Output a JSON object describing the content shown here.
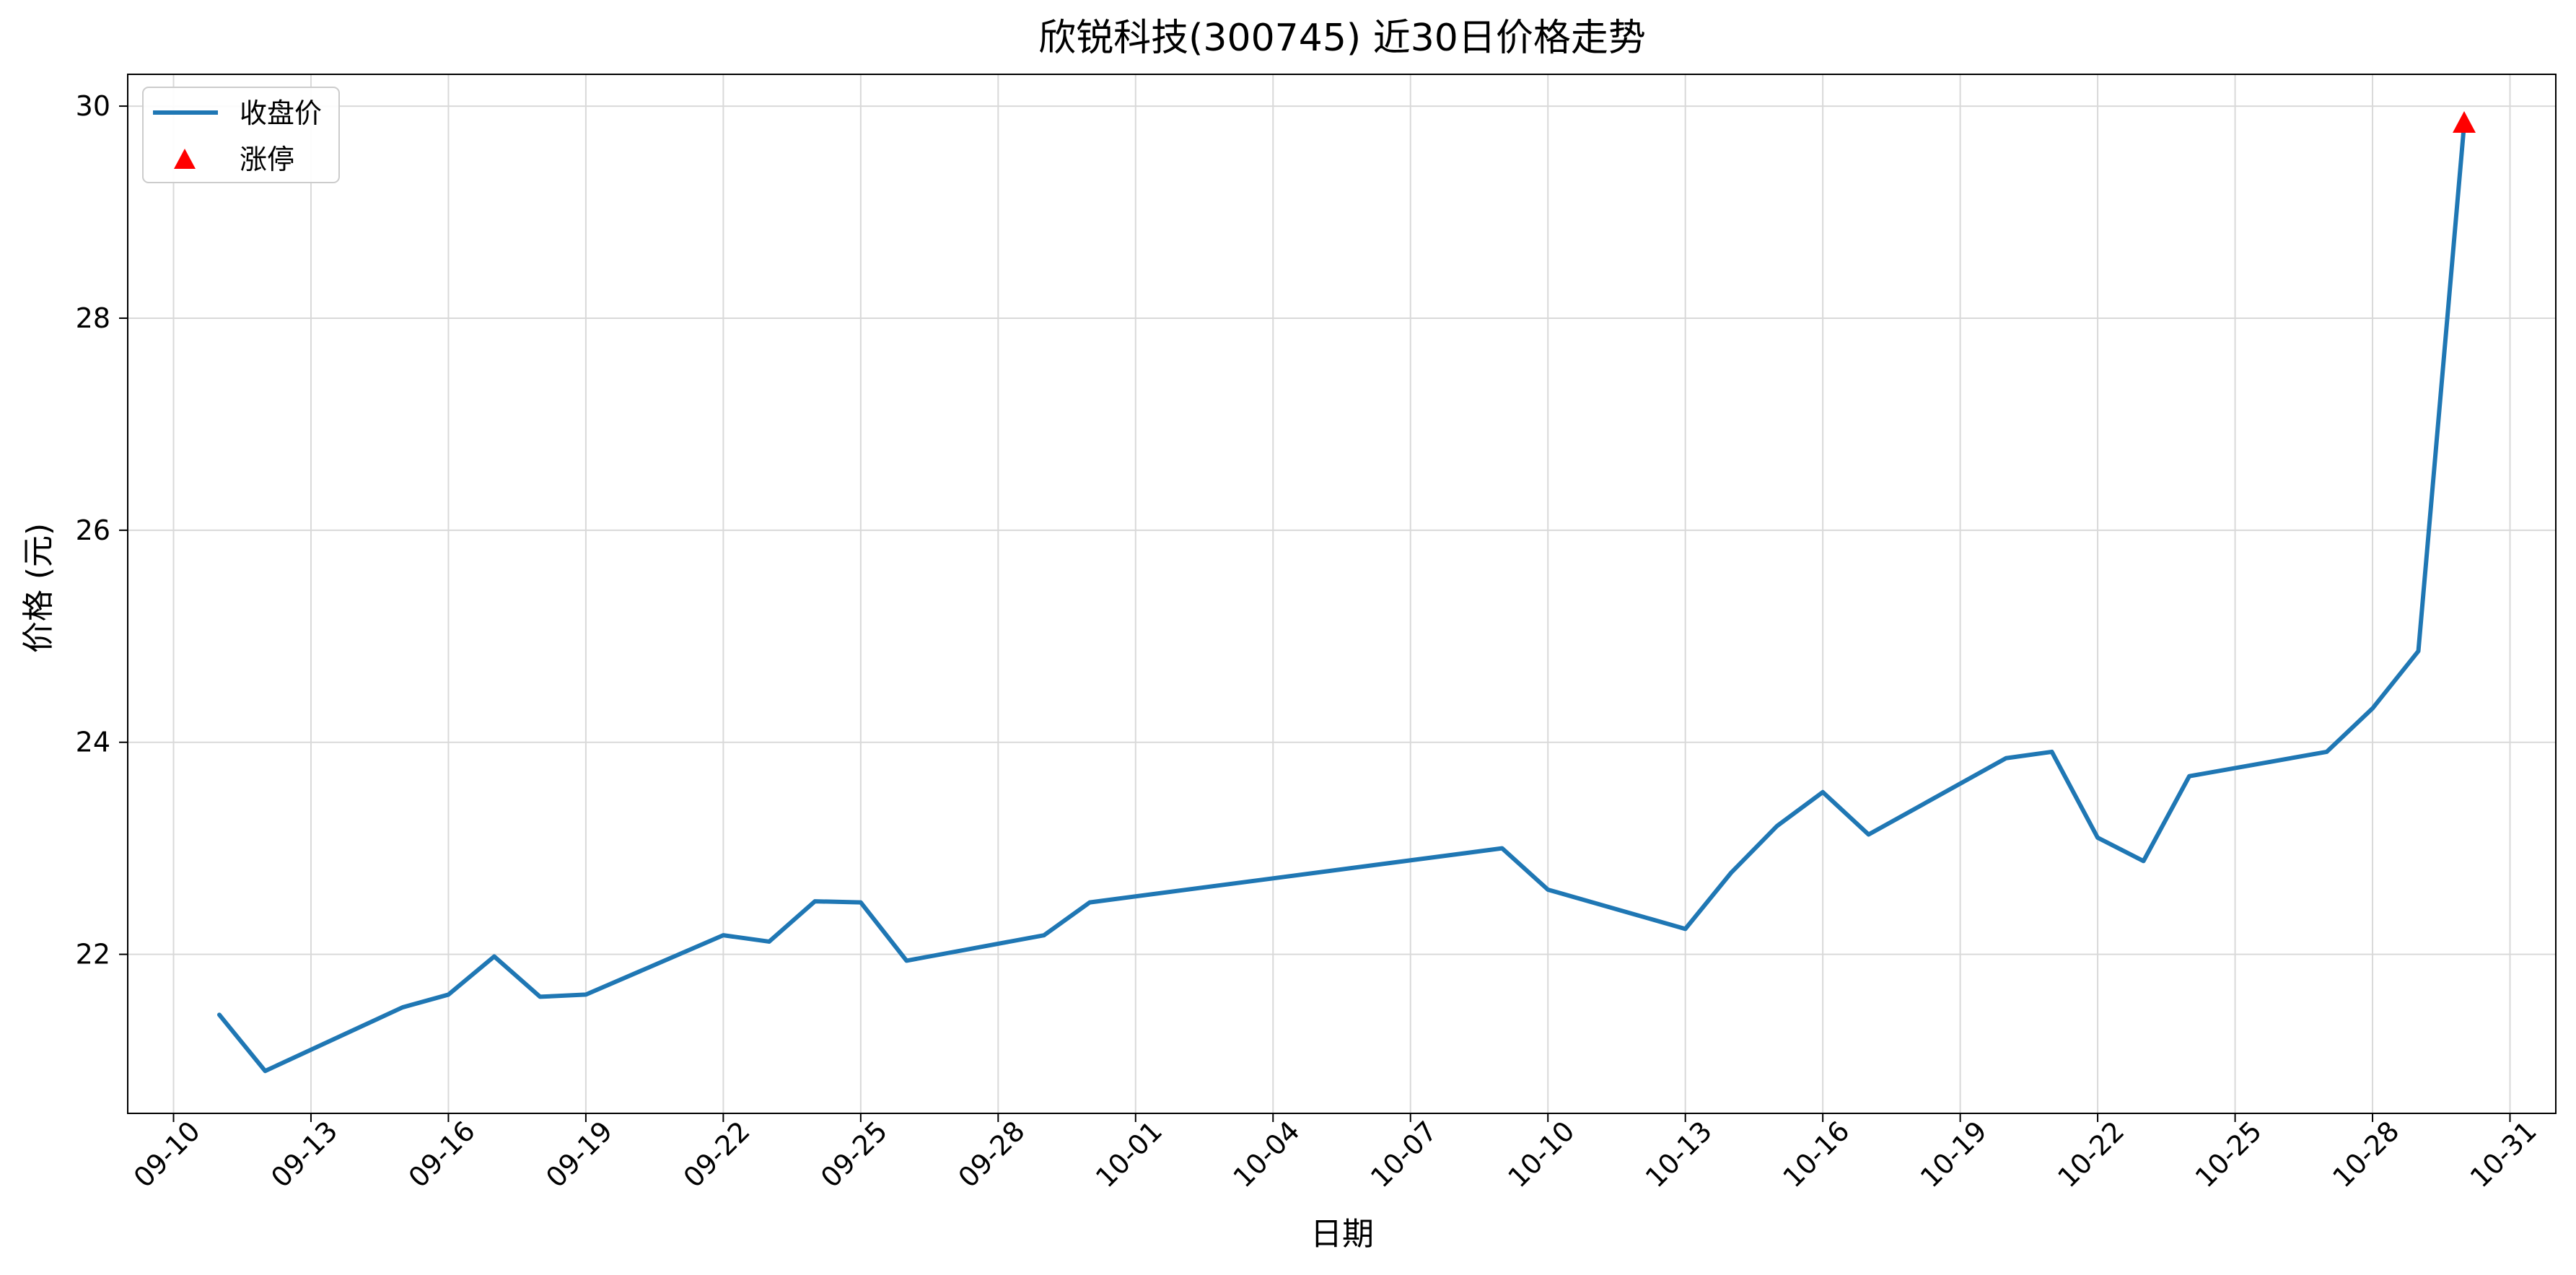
{
  "chart_data": {
    "type": "line",
    "title": "欣锐科技(300745) 近30日价格走势",
    "xlabel": "日期",
    "ylabel": "价格 (元)",
    "xlim": [
      "2025-09-09",
      "2025-11-01"
    ],
    "ylim": [
      20.5,
      30.3
    ],
    "yticks": [
      22,
      24,
      26,
      28,
      30
    ],
    "xticks": [
      {
        "date": "2025-09-10",
        "label": "09-10"
      },
      {
        "date": "2025-09-13",
        "label": "09-13"
      },
      {
        "date": "2025-09-16",
        "label": "09-16"
      },
      {
        "date": "2025-09-19",
        "label": "09-19"
      },
      {
        "date": "2025-09-22",
        "label": "09-22"
      },
      {
        "date": "2025-09-25",
        "label": "09-25"
      },
      {
        "date": "2025-09-28",
        "label": "09-28"
      },
      {
        "date": "2025-10-01",
        "label": "10-01"
      },
      {
        "date": "2025-10-04",
        "label": "10-04"
      },
      {
        "date": "2025-10-07",
        "label": "10-07"
      },
      {
        "date": "2025-10-10",
        "label": "10-10"
      },
      {
        "date": "2025-10-13",
        "label": "10-13"
      },
      {
        "date": "2025-10-16",
        "label": "10-16"
      },
      {
        "date": "2025-10-19",
        "label": "10-19"
      },
      {
        "date": "2025-10-22",
        "label": "10-22"
      },
      {
        "date": "2025-10-25",
        "label": "10-25"
      },
      {
        "date": "2025-10-28",
        "label": "10-28"
      },
      {
        "date": "2025-10-31",
        "label": "10-31"
      }
    ],
    "grid": true,
    "legend": {
      "position": "top-left",
      "entries": [
        {
          "label": "收盘价",
          "marker": "line",
          "color": "#1f77b4"
        },
        {
          "label": "涨停",
          "marker": "triangle-up",
          "color": "#ff0000"
        }
      ]
    },
    "series": [
      {
        "name": "收盘价",
        "color": "#1f77b4",
        "points": [
          {
            "date": "2025-09-11",
            "value": 21.43
          },
          {
            "date": "2025-09-12",
            "value": 20.9
          },
          {
            "date": "2025-09-15",
            "value": 21.5
          },
          {
            "date": "2025-09-16",
            "value": 21.62
          },
          {
            "date": "2025-09-17",
            "value": 21.98
          },
          {
            "date": "2025-09-18",
            "value": 21.6
          },
          {
            "date": "2025-09-19",
            "value": 21.62
          },
          {
            "date": "2025-09-22",
            "value": 22.18
          },
          {
            "date": "2025-09-23",
            "value": 22.12
          },
          {
            "date": "2025-09-24",
            "value": 22.5
          },
          {
            "date": "2025-09-25",
            "value": 22.49
          },
          {
            "date": "2025-09-26",
            "value": 21.94
          },
          {
            "date": "2025-09-29",
            "value": 22.18
          },
          {
            "date": "2025-09-30",
            "value": 22.49
          },
          {
            "date": "2025-10-09",
            "value": 23.0
          },
          {
            "date": "2025-10-10",
            "value": 22.61
          },
          {
            "date": "2025-10-13",
            "value": 22.24
          },
          {
            "date": "2025-10-14",
            "value": 22.77
          },
          {
            "date": "2025-10-15",
            "value": 23.21
          },
          {
            "date": "2025-10-16",
            "value": 23.53
          },
          {
            "date": "2025-10-17",
            "value": 23.13
          },
          {
            "date": "2025-10-20",
            "value": 23.85
          },
          {
            "date": "2025-10-21",
            "value": 23.91
          },
          {
            "date": "2025-10-22",
            "value": 23.1
          },
          {
            "date": "2025-10-23",
            "value": 22.88
          },
          {
            "date": "2025-10-24",
            "value": 23.68
          },
          {
            "date": "2025-10-27",
            "value": 23.91
          },
          {
            "date": "2025-10-28",
            "value": 24.32
          },
          {
            "date": "2025-10-29",
            "value": 24.86
          },
          {
            "date": "2025-10-30",
            "value": 29.83
          }
        ]
      },
      {
        "name": "涨停",
        "color": "#ff0000",
        "marker": "triangle-up",
        "points": [
          {
            "date": "2025-10-30",
            "value": 29.83
          }
        ]
      }
    ]
  }
}
